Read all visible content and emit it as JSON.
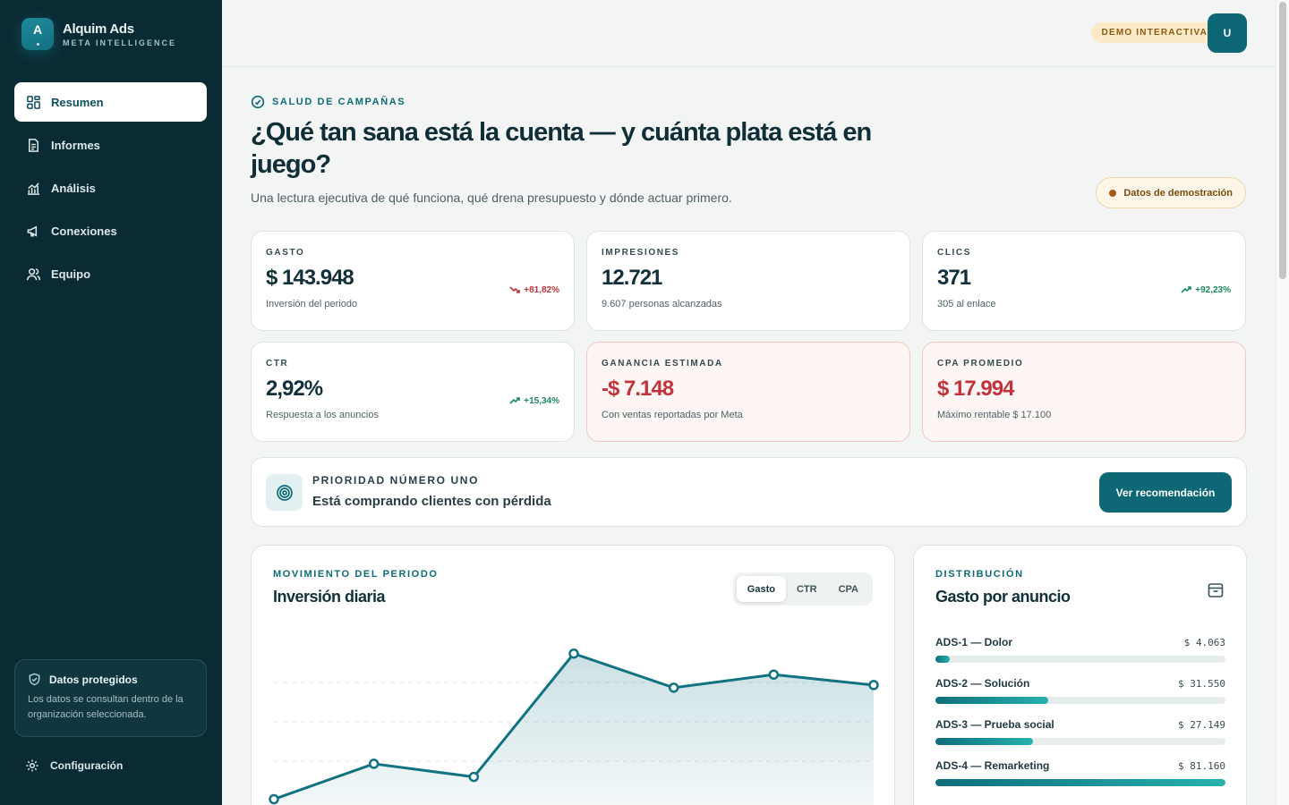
{
  "brand": {
    "logo_letter": "A",
    "name": "Alquim Ads",
    "subtitle": "META INTELLIGENCE"
  },
  "nav": [
    {
      "label": "Resumen",
      "icon": "dashboard-icon",
      "active": true
    },
    {
      "label": "Informes",
      "icon": "document-icon",
      "active": false
    },
    {
      "label": "Análisis",
      "icon": "chart-icon",
      "active": false
    },
    {
      "label": "Conexiones",
      "icon": "megaphone-icon",
      "active": false
    },
    {
      "label": "Equipo",
      "icon": "users-icon",
      "active": false
    }
  ],
  "protected": {
    "title": "Datos protegidos",
    "text": "Los datos se consultan dentro de la organización seleccionada."
  },
  "settings_label": "Configuración",
  "topbar": {
    "demo_pill": "DEMO INTERACTIVA",
    "avatar": "U"
  },
  "header": {
    "eyebrow": "SALUD DE CAMPAÑAS",
    "title": "¿Qué tan sana está la cuenta — y cuánta plata está en juego?",
    "subtitle": "Una lectura ejecutiva de qué funciona, qué drena presupuesto y dónde actuar primero.",
    "demo_badge": "Datos de demostración"
  },
  "kpis": [
    {
      "label": "GASTO",
      "value": "$ 143.948",
      "note": "Inversión del periodo",
      "delta": "+81,82%",
      "delta_tone": "bad",
      "alert": false
    },
    {
      "label": "IMPRESIONES",
      "value": "12.721",
      "note": "9.607 personas alcanzadas",
      "delta": "",
      "delta_tone": "",
      "alert": false
    },
    {
      "label": "CLICS",
      "value": "371",
      "note": "305 al enlace",
      "delta": "+92,23%",
      "delta_tone": "good",
      "alert": false
    },
    {
      "label": "CTR",
      "value": "2,92%",
      "note": "Respuesta a los anuncios",
      "delta": "+15,34%",
      "delta_tone": "good",
      "alert": false
    },
    {
      "label": "GANANCIA ESTIMADA",
      "value": "-$ 7.148",
      "note": "Con ventas reportadas por Meta",
      "delta": "",
      "delta_tone": "",
      "alert": true
    },
    {
      "label": "CPA PROMEDIO",
      "value": "$ 17.994",
      "note": "Máximo rentable $ 17.100",
      "delta": "",
      "delta_tone": "",
      "alert": true
    }
  ],
  "priority": {
    "eyebrow": "PRIORIDAD NÚMERO UNO",
    "title": "Está comprando clientes con pérdida",
    "button": "Ver recomendación"
  },
  "chart_card": {
    "eyebrow": "MOVIMIENTO DEL PERIODO",
    "title": "Inversión diaria",
    "tabs": [
      "Gasto",
      "CTR",
      "CPA"
    ],
    "active_tab": "Gasto"
  },
  "chart_data": {
    "type": "area",
    "x": [
      1,
      2,
      3,
      4,
      5,
      6,
      7
    ],
    "values": [
      0.5,
      14,
      9,
      56,
      43,
      48,
      44
    ],
    "ylim": [
      0,
      60
    ],
    "grid": true,
    "color": "#117282"
  },
  "dist_card": {
    "eyebrow": "DISTRIBUCIÓN",
    "title": "Gasto por anuncio",
    "items": [
      {
        "name": "ADS-1 — Dolor",
        "value": "$ 4.063",
        "share": 0.05
      },
      {
        "name": "ADS-2 — Solución",
        "value": "$ 31.550",
        "share": 0.389
      },
      {
        "name": "ADS-3 — Prueba social",
        "value": "$ 27.149",
        "share": 0.335
      },
      {
        "name": "ADS-4 — Remarketing",
        "value": "$ 81.160",
        "share": 1.0
      }
    ]
  }
}
